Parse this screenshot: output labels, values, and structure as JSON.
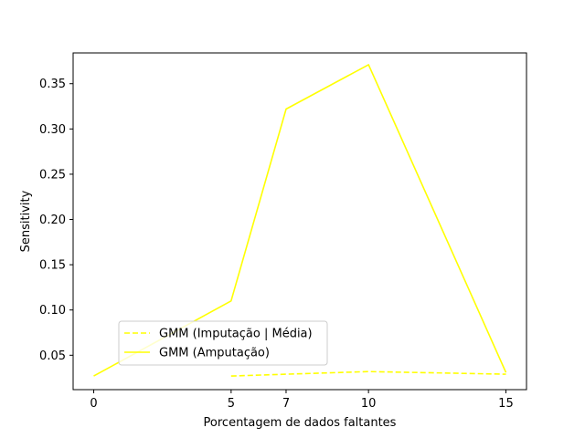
{
  "chart_data": {
    "type": "line",
    "title": "",
    "xlabel": "Porcentagem de dados faltantes",
    "ylabel": "Sensitivity",
    "xlim": [
      -0.75,
      15.75
    ],
    "ylim": [
      0.012,
      0.384
    ],
    "xticks": [
      0,
      5,
      7,
      10,
      15
    ],
    "yticks": [
      0.05,
      0.1,
      0.15,
      0.2,
      0.25,
      0.3,
      0.35
    ],
    "ytick_labels": [
      "0.05",
      "0.10",
      "0.15",
      "0.20",
      "0.25",
      "0.30",
      "0.35"
    ],
    "grid": false,
    "legend_position": "lower-left",
    "series": [
      {
        "name": "GMM (Imputação | Média)",
        "color": "#ffff00",
        "style": "dashed",
        "x": [
          5,
          7,
          10,
          15
        ],
        "y": [
          0.027,
          0.029,
          0.032,
          0.029
        ]
      },
      {
        "name": "GMM (Amputação)",
        "color": "#ffff00",
        "style": "solid",
        "x": [
          0,
          5,
          7,
          10,
          15
        ],
        "y": [
          0.027,
          0.11,
          0.322,
          0.371,
          0.031
        ]
      }
    ]
  }
}
